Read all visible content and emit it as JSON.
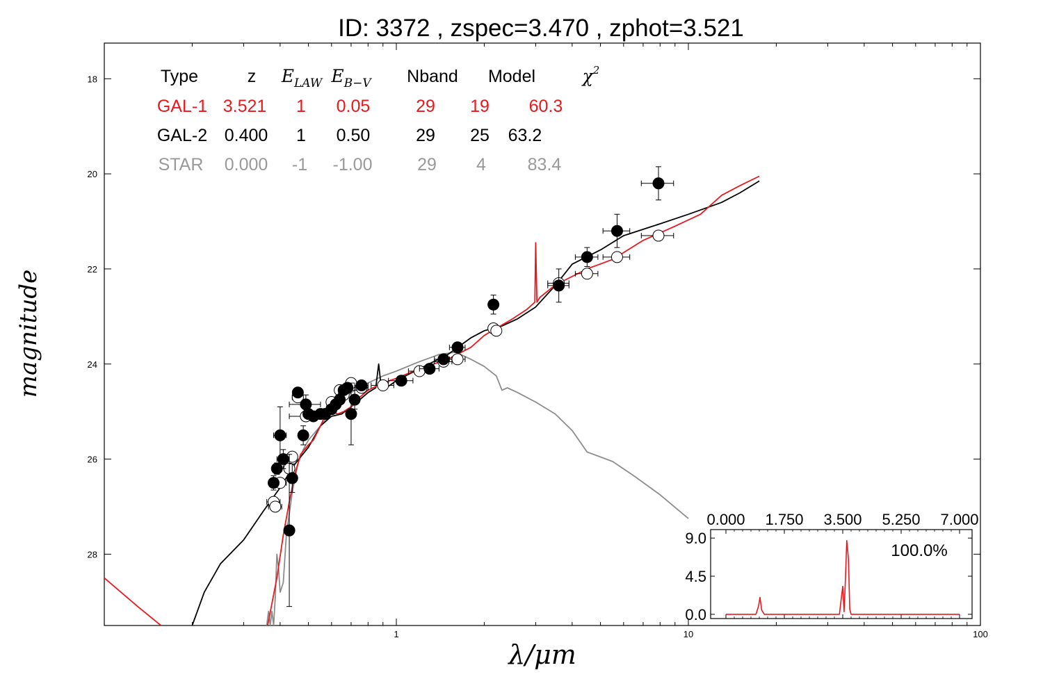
{
  "chart_data": [
    {
      "type": "scatter",
      "title": "ID:  3372  , zspec=3.470 , zphot=3.521",
      "xlabel": "λ/μm",
      "ylabel": "magnitude",
      "x_scale": "log",
      "y_inverted": true,
      "xlim": [
        0.1,
        100
      ],
      "ylim": [
        29.5,
        17.25
      ],
      "x_ticks": [
        1,
        10,
        100
      ],
      "x_tick_labels": [
        "1",
        "10",
        "100"
      ],
      "y_ticks": [
        18,
        20,
        22,
        24,
        26,
        28
      ],
      "y_tick_labels": [
        "18",
        "20",
        "22",
        "24",
        "26",
        "28"
      ],
      "grid": false,
      "colors": {
        "gal1": "#e8191e",
        "gal2": "#000000",
        "star": "#8c8c8c"
      },
      "legend_table": {
        "headers": [
          {
            "text": "Type",
            "math": false
          },
          {
            "text": "z",
            "math": false
          },
          {
            "text": "E",
            "sub": "LAW",
            "math": true
          },
          {
            "text": "E",
            "sub": "B−V",
            "math": true
          },
          {
            "text": "Nband",
            "math": false
          },
          {
            "text": "Model",
            "math": false
          },
          {
            "text": "χ",
            "sup": "2",
            "math": true
          }
        ],
        "rows": [
          {
            "cells": [
              "GAL-1",
              "3.521",
              "1",
              "0.05",
              "29",
              "19",
              "60.3"
            ],
            "color": "#e8191e"
          },
          {
            "cells": [
              "GAL-2",
              "0.400",
              "1",
              "0.50",
              "29",
              "25",
              "63.2"
            ],
            "color": "#000000"
          },
          {
            "cells": [
              "STAR",
              "0.000",
              "-1",
              "-1.00",
              "29",
              "4",
              "83.4"
            ],
            "color": "#999999"
          }
        ]
      },
      "series": [
        {
          "name": "GAL-1",
          "kind": "line",
          "color": "#e8191e",
          "x": [
            0.1,
            0.13,
            0.16,
            0.36,
            0.39,
            0.41,
            0.43,
            0.45,
            0.47,
            0.5,
            0.52,
            0.54,
            0.56,
            0.58,
            0.6,
            0.63,
            0.66,
            0.7,
            0.75,
            0.8,
            0.9,
            1.0,
            1.2,
            1.5,
            1.8,
            2.0,
            2.2,
            2.5,
            2.8,
            2.98,
            3.0,
            3.03,
            3.1,
            3.4,
            3.6,
            4.5,
            5.5,
            7.0,
            9.0,
            11.0,
            13.0,
            15.0,
            17.5
          ],
          "y": [
            28.5,
            29.1,
            29.55,
            29.6,
            28.5,
            27.6,
            26.9,
            26.3,
            25.9,
            25.7,
            25.6,
            25.4,
            25.2,
            24.85,
            25.0,
            25.05,
            25.0,
            24.9,
            24.7,
            24.55,
            24.4,
            24.3,
            24.1,
            23.9,
            23.65,
            23.4,
            23.25,
            23.05,
            22.85,
            22.7,
            21.45,
            22.7,
            22.6,
            22.4,
            22.3,
            22.0,
            21.8,
            21.4,
            21.1,
            20.85,
            20.45,
            20.25,
            20.05
          ]
        },
        {
          "name": "GAL-2",
          "kind": "line",
          "color": "#000000",
          "x": [
            0.2,
            0.22,
            0.25,
            0.3,
            0.35,
            0.4,
            0.45,
            0.5,
            0.55,
            0.6,
            0.65,
            0.7,
            0.75,
            0.8,
            0.85,
            0.87,
            0.89,
            0.95,
            1.0,
            1.2,
            1.5,
            1.8,
            2.0,
            2.3,
            2.6,
            3.0,
            3.5,
            4.0,
            5.0,
            6.0,
            8.0,
            10.0,
            13.0,
            15.0,
            17.5
          ],
          "y": [
            29.5,
            28.8,
            28.2,
            27.7,
            27.1,
            26.6,
            26.1,
            25.75,
            25.3,
            25.1,
            25.05,
            24.9,
            24.75,
            24.6,
            24.5,
            24.0,
            24.55,
            24.45,
            24.35,
            24.1,
            23.8,
            23.45,
            23.3,
            23.2,
            23.05,
            22.8,
            22.35,
            21.9,
            21.6,
            21.3,
            21.05,
            20.85,
            20.6,
            20.4,
            20.15
          ]
        },
        {
          "name": "STAR",
          "kind": "line",
          "color": "#8c8c8c",
          "x": [
            0.36,
            0.365,
            0.37,
            0.375,
            0.38,
            0.385,
            0.39,
            0.395,
            0.4,
            0.41,
            0.42,
            0.44,
            0.46,
            0.48,
            0.5,
            0.55,
            0.6,
            0.7,
            0.8,
            0.9,
            1.0,
            1.2,
            1.4,
            1.6,
            1.8,
            2.0,
            2.2,
            2.3,
            2.4,
            2.6,
            3.0,
            3.5,
            4.0,
            4.5,
            5.5,
            6.5,
            8.0,
            10.0
          ],
          "y": [
            29.5,
            29.2,
            29.5,
            29.2,
            29.5,
            28.9,
            28.0,
            28.3,
            28.8,
            28.6,
            27.6,
            26.7,
            26.1,
            25.8,
            25.6,
            25.3,
            25.0,
            24.6,
            24.4,
            24.25,
            24.15,
            23.95,
            23.8,
            23.75,
            23.9,
            24.05,
            24.25,
            24.55,
            24.5,
            24.6,
            24.8,
            25.05,
            25.4,
            25.85,
            26.05,
            26.35,
            26.75,
            27.25
          ]
        },
        {
          "name": "observed",
          "kind": "points",
          "fill": "#000000",
          "points": [
            {
              "x": 0.38,
              "y": 26.5,
              "xerr": 0.01,
              "yerr": 0.15
            },
            {
              "x": 0.39,
              "y": 26.2,
              "xerr": 0.01,
              "yerr": 0.12
            },
            {
              "x": 0.4,
              "y": 25.5,
              "xerr": 0.02,
              "yerr": 0.6
            },
            {
              "x": 0.41,
              "y": 26.0,
              "xerr": 0.02,
              "yerr": 0.2
            },
            {
              "x": 0.43,
              "y": 27.5,
              "xerr": 0.01,
              "yerr": 1.6
            },
            {
              "x": 0.44,
              "y": 26.4,
              "xerr": 0.01,
              "yerr": 0.3
            },
            {
              "x": 0.46,
              "y": 24.6,
              "xerr": 0.01,
              "yerr": 0.1
            },
            {
              "x": 0.48,
              "y": 25.5,
              "xerr": 0.01,
              "yerr": 0.2
            },
            {
              "x": 0.49,
              "y": 24.85,
              "xerr": 0.06,
              "yerr": 0.2
            },
            {
              "x": 0.5,
              "y": 25.05,
              "xerr": 0.02,
              "yerr": 0.1
            },
            {
              "x": 0.52,
              "y": 25.1,
              "xerr": 0.02,
              "yerr": 0.08
            },
            {
              "x": 0.55,
              "y": 25.05,
              "xerr": 0.02,
              "yerr": 0.08
            },
            {
              "x": 0.57,
              "y": 25.05,
              "xerr": 0.02,
              "yerr": 0.08
            },
            {
              "x": 0.6,
              "y": 24.95,
              "xerr": 0.02,
              "yerr": 0.08
            },
            {
              "x": 0.62,
              "y": 24.85,
              "xerr": 0.02,
              "yerr": 0.08
            },
            {
              "x": 0.64,
              "y": 24.75,
              "xerr": 0.02,
              "yerr": 0.08
            },
            {
              "x": 0.66,
              "y": 24.55,
              "xerr": 0.02,
              "yerr": 0.08
            },
            {
              "x": 0.68,
              "y": 24.5,
              "xerr": 0.02,
              "yerr": 0.08
            },
            {
              "x": 0.7,
              "y": 25.05,
              "xerr": 0.02,
              "yerr": 0.65
            },
            {
              "x": 0.72,
              "y": 24.75,
              "xerr": 0.02,
              "yerr": 0.2
            },
            {
              "x": 0.76,
              "y": 24.45,
              "xerr": 0.04,
              "yerr": 0.1
            },
            {
              "x": 1.04,
              "y": 24.35,
              "xerr": 0.1,
              "yerr": 0.08
            },
            {
              "x": 1.3,
              "y": 24.1,
              "xerr": 0.1,
              "yerr": 0.06
            },
            {
              "x": 1.45,
              "y": 23.9,
              "xerr": 0.1,
              "yerr": 0.06
            },
            {
              "x": 1.62,
              "y": 23.65,
              "xerr": 0.1,
              "yerr": 0.06
            },
            {
              "x": 2.15,
              "y": 22.75,
              "xerr": 0.05,
              "yerr": 0.2
            },
            {
              "x": 3.6,
              "y": 22.35,
              "xerr": 0.3,
              "yerr": 0.35
            },
            {
              "x": 4.5,
              "y": 21.75,
              "xerr": 0.4,
              "yerr": 0.2
            },
            {
              "x": 5.7,
              "y": 21.2,
              "xerr": 0.6,
              "yerr": 0.35
            },
            {
              "x": 7.9,
              "y": 20.2,
              "xerr": 1.0,
              "yerr": 0.35
            }
          ]
        },
        {
          "name": "model",
          "kind": "points",
          "fill": "#ffffff",
          "points": [
            {
              "x": 0.38,
              "y": 26.9,
              "xerr": 0.02
            },
            {
              "x": 0.385,
              "y": 27.0,
              "xerr": 0.02
            },
            {
              "x": 0.4,
              "y": 26.5,
              "xerr": 0.02
            },
            {
              "x": 0.43,
              "y": 26.2,
              "xerr": 0.01
            },
            {
              "x": 0.44,
              "y": 25.95,
              "xerr": 0.01
            },
            {
              "x": 0.46,
              "y": 24.7,
              "xerr": 0.02
            },
            {
              "x": 0.49,
              "y": 25.1,
              "xerr": 0.06
            },
            {
              "x": 0.6,
              "y": 24.8,
              "xerr": 0.02
            },
            {
              "x": 0.64,
              "y": 24.55,
              "xerr": 0.02
            },
            {
              "x": 0.66,
              "y": 24.65,
              "xerr": 0.02
            },
            {
              "x": 0.7,
              "y": 24.4,
              "xerr": 0.02
            },
            {
              "x": 0.76,
              "y": 24.5,
              "xerr": 0.04
            },
            {
              "x": 0.9,
              "y": 24.45,
              "xerr": 0.08
            },
            {
              "x": 1.2,
              "y": 24.15,
              "xerr": 0.1
            },
            {
              "x": 1.45,
              "y": 23.95,
              "xerr": 0.1
            },
            {
              "x": 1.62,
              "y": 23.9,
              "xerr": 0.1
            },
            {
              "x": 2.15,
              "y": 23.25,
              "xerr": 0.05
            },
            {
              "x": 2.2,
              "y": 23.3,
              "xerr": 0.05
            },
            {
              "x": 3.6,
              "y": 22.3,
              "xerr": 0.3
            },
            {
              "x": 4.5,
              "y": 22.1,
              "xerr": 0.4
            },
            {
              "x": 5.7,
              "y": 21.75,
              "xerr": 0.6
            },
            {
              "x": 7.9,
              "y": 21.3,
              "xerr": 1.0
            }
          ]
        }
      ]
    },
    {
      "type": "line",
      "title": "",
      "annotation": "100.0%",
      "xlim": [
        0.0,
        7.0
      ],
      "ylim": [
        -0.5,
        10.0
      ],
      "x_ticks": [
        0.0,
        1.75,
        3.5,
        5.25,
        7.0
      ],
      "x_tick_labels": [
        "0.000",
        "1.750",
        "3.500",
        "5.250",
        "7.000"
      ],
      "x_ticks_position": "top",
      "y_ticks": [
        0.0,
        4.5,
        9.0
      ],
      "y_tick_labels": [
        "0.0",
        "4.5",
        "9.0"
      ],
      "color": "#e8191e",
      "x": [
        0.0,
        0.3,
        0.9,
        0.98,
        1.02,
        1.07,
        1.15,
        2.0,
        3.0,
        3.4,
        3.46,
        3.5,
        3.54,
        3.58,
        3.62,
        3.67,
        3.71,
        3.75,
        3.8,
        4.5,
        5.5,
        6.5,
        7.0
      ],
      "y": [
        0.0,
        0.0,
        0.0,
        1.0,
        2.0,
        0.5,
        0.0,
        0.0,
        0.0,
        0.0,
        2.0,
        3.3,
        0.3,
        4.0,
        8.7,
        6.5,
        0.6,
        0.0,
        0.0,
        0.0,
        0.0,
        0.0,
        0.0
      ]
    }
  ]
}
